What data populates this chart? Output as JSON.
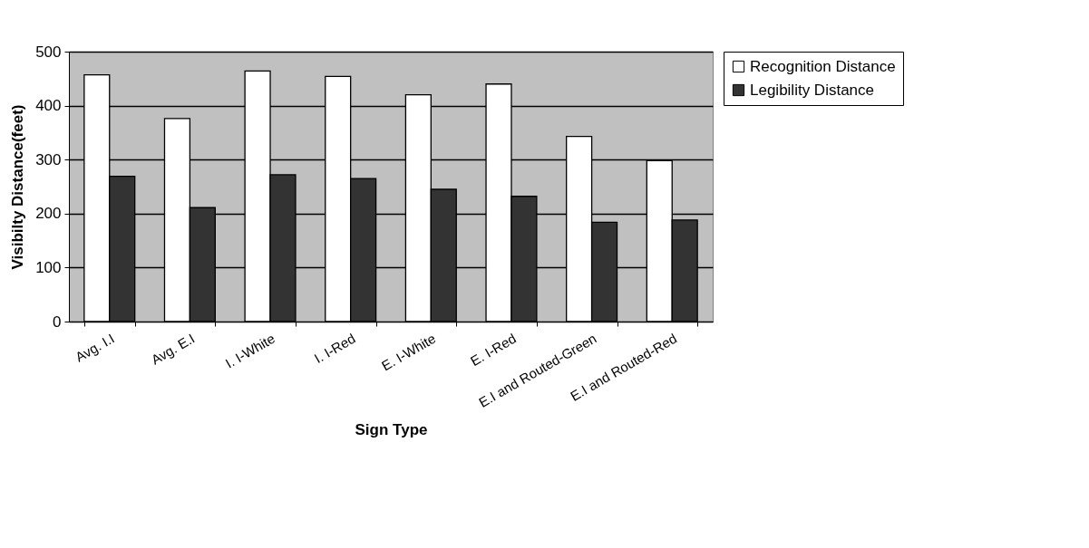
{
  "chart_data": {
    "type": "bar",
    "xlabel": "Sign Type",
    "ylabel": "Visibilty Distance(feet)",
    "categories": [
      "Avg. I.I",
      "Avg. E.I",
      "I. I-White",
      "I. I-Red",
      "E. I-White",
      "E. I-Red",
      "E.I and Routed-Green",
      "E.I and Routed-Red"
    ],
    "series": [
      {
        "name": "Recognition Distance",
        "color": "#ffffff",
        "values": [
          457,
          376,
          464,
          454,
          420,
          440,
          343,
          298
        ]
      },
      {
        "name": "Legibility Distance",
        "color": "#333333",
        "values": [
          269,
          211,
          272,
          265,
          245,
          232,
          184,
          188
        ]
      }
    ],
    "ylim": [
      0,
      500
    ],
    "yticks": [
      0,
      100,
      200,
      300,
      400,
      500
    ],
    "grid": "y",
    "legend": "right"
  }
}
